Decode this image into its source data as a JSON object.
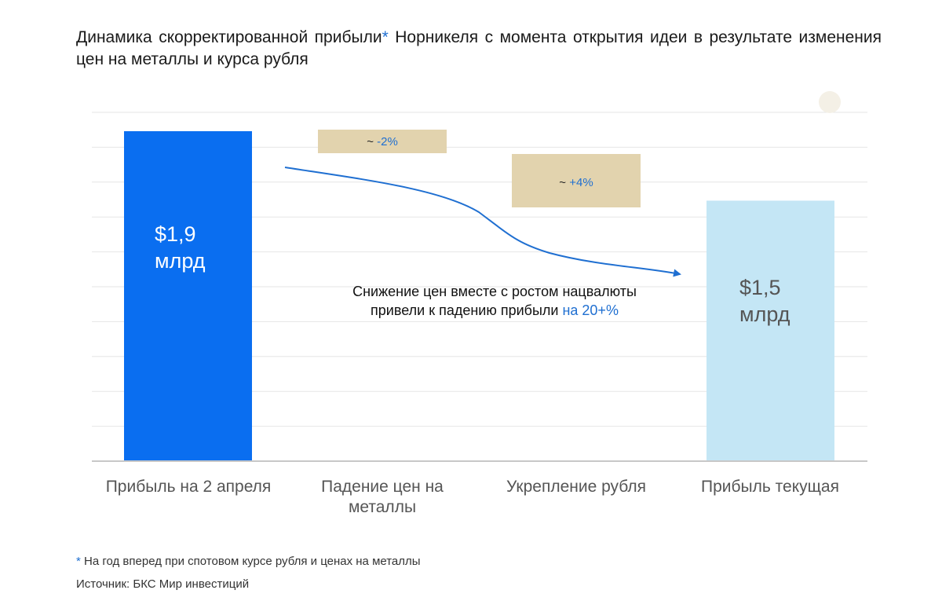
{
  "title": {
    "text_before": "Динамика скорректированной прибыли",
    "star": "*",
    "text_after": " Норникеля с момента открытия идеи в результате изменения цен на металлы и курса рубля"
  },
  "chart_data": {
    "type": "bar",
    "categories": [
      "Прибыль на 2 апреля",
      "Падение цен на металлы",
      "Укрепление рубля",
      "Прибыль текущая"
    ],
    "bars": [
      {
        "category": "Прибыль на 2 апреля",
        "value": 1.9,
        "label_line1": "$1,9",
        "label_line2": "млрд",
        "color": "#0a6ef0",
        "label_color": "#ffffff"
      },
      {
        "category": "Прибыль текущая",
        "value": 1.5,
        "label_line1": "$1,5",
        "label_line2": "млрд",
        "color": "#c4e6f5",
        "label_color": "#555555"
      }
    ],
    "deltas": [
      {
        "category": "Падение цен на металлы",
        "prefix": "~ ",
        "value": "-2%",
        "color": "#e2d3ae"
      },
      {
        "category": "Укрепление рубля",
        "prefix": "~ ",
        "value": "+4%",
        "color": "#e2d3ae"
      }
    ],
    "annotation": {
      "line1": "Снижение цен вместе с ростом нацвалюты",
      "line2_prefix": "привели к падению прибыли ",
      "line2_highlight": "на 20+%"
    },
    "grid": true,
    "accent_color": "#1f6fd1"
  },
  "footnote": {
    "star": "*",
    "text": " На год вперед при спотовом курсе рубля и ценах на металлы"
  },
  "source": "Источник: БКС Мир инвестиций"
}
